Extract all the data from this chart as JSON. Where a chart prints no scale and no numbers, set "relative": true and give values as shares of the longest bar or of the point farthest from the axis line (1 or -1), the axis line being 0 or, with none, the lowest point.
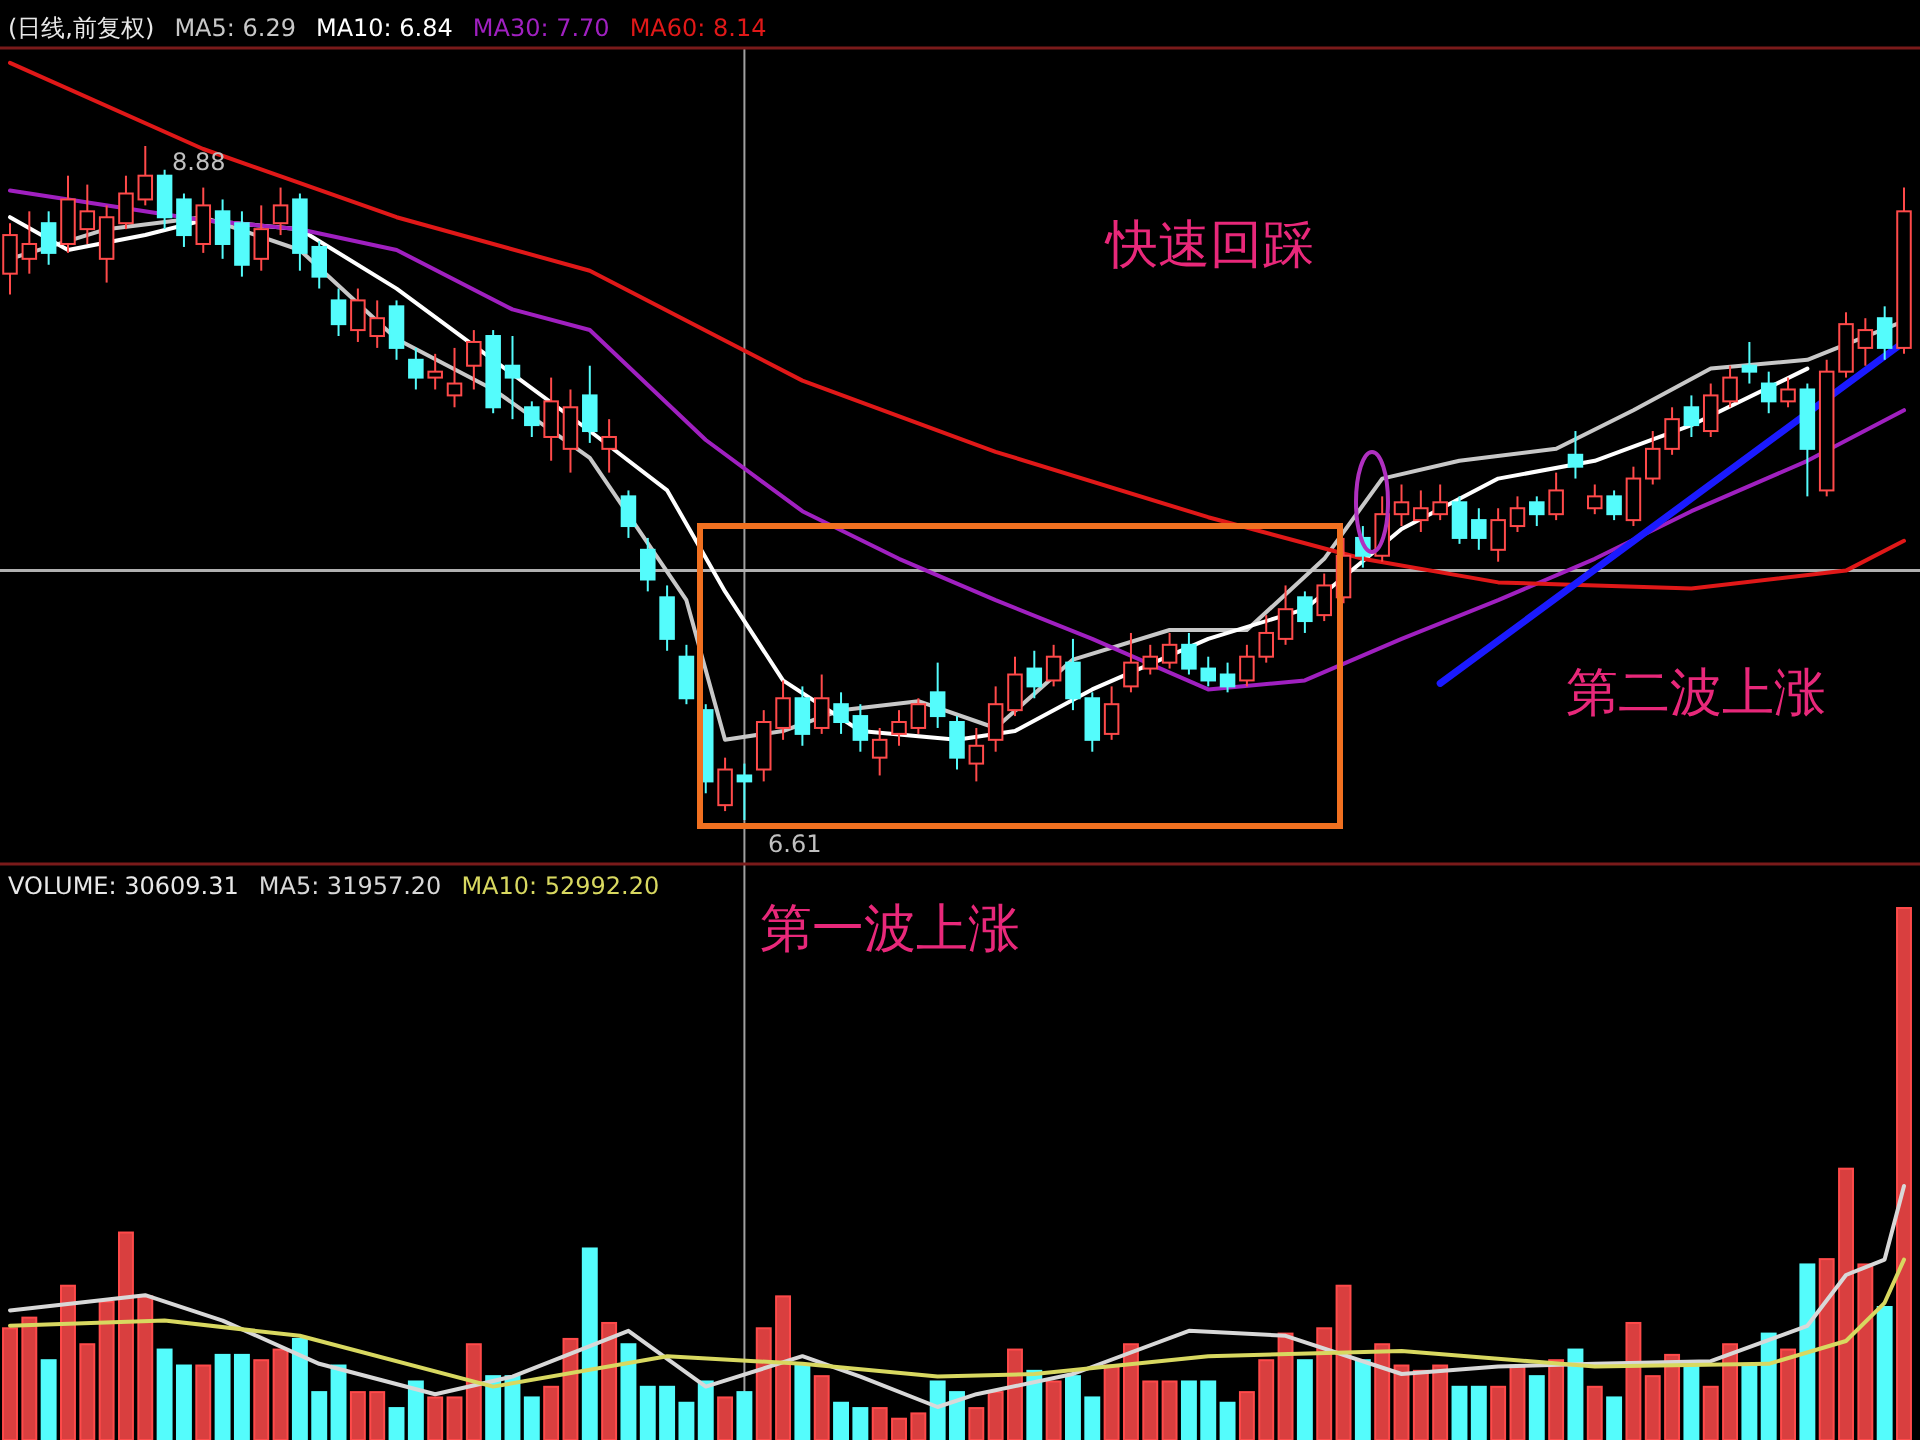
{
  "chart_data": [
    {
      "type": "candlestick",
      "title": "(日线,前复权)",
      "legend": "top left",
      "categories": [
        null,
        null,
        null,
        null,
        null,
        null,
        null,
        null,
        null,
        null,
        null,
        null,
        null,
        null,
        null,
        null,
        null,
        null,
        null,
        null,
        null,
        null,
        null,
        null,
        null,
        null,
        null,
        null,
        null,
        null,
        null,
        null,
        null,
        null,
        null,
        null,
        null,
        null,
        null,
        null,
        null,
        null,
        null,
        null,
        null,
        null,
        null,
        null,
        null,
        null,
        null,
        null,
        null,
        null,
        null,
        null,
        null,
        null,
        null,
        null,
        null,
        null,
        null,
        null,
        null,
        null,
        null,
        null,
        null,
        null,
        null,
        null,
        null,
        null,
        null,
        null,
        null,
        null,
        null,
        null,
        null,
        null,
        null,
        null,
        null,
        null,
        null,
        null,
        null,
        null,
        null,
        null,
        null,
        null,
        null,
        null,
        null,
        null,
        null
      ],
      "ohlc": [
        [
          8.45,
          8.62,
          8.38,
          8.58
        ],
        [
          8.5,
          8.66,
          8.45,
          8.55
        ],
        [
          8.62,
          8.66,
          8.48,
          8.52
        ],
        [
          8.55,
          8.78,
          8.52,
          8.7
        ],
        [
          8.6,
          8.75,
          8.55,
          8.66
        ],
        [
          8.5,
          8.68,
          8.42,
          8.64
        ],
        [
          8.62,
          8.78,
          8.6,
          8.72
        ],
        [
          8.7,
          8.88,
          8.68,
          8.78
        ],
        [
          8.78,
          8.8,
          8.6,
          8.64
        ],
        [
          8.7,
          8.72,
          8.54,
          8.58
        ],
        [
          8.55,
          8.74,
          8.52,
          8.68
        ],
        [
          8.66,
          8.7,
          8.5,
          8.55
        ],
        [
          8.62,
          8.66,
          8.44,
          8.48
        ],
        [
          8.5,
          8.68,
          8.46,
          8.6
        ],
        [
          8.62,
          8.74,
          8.58,
          8.68
        ],
        [
          8.7,
          8.72,
          8.46,
          8.52
        ],
        [
          8.54,
          8.56,
          8.4,
          8.44
        ],
        [
          8.36,
          8.4,
          8.24,
          8.28
        ],
        [
          8.26,
          8.4,
          8.22,
          8.36
        ],
        [
          8.24,
          8.36,
          8.2,
          8.3
        ],
        [
          8.34,
          8.36,
          8.16,
          8.2
        ],
        [
          8.16,
          8.2,
          8.06,
          8.1
        ],
        [
          8.1,
          8.18,
          8.06,
          8.12
        ],
        [
          8.04,
          8.2,
          8.0,
          8.08
        ],
        [
          8.14,
          8.26,
          8.06,
          8.22
        ],
        [
          8.24,
          8.26,
          7.98,
          8.0
        ],
        [
          8.14,
          8.24,
          7.96,
          8.1
        ],
        [
          8.0,
          8.02,
          7.9,
          7.94
        ],
        [
          7.9,
          8.1,
          7.82,
          8.02
        ],
        [
          7.86,
          8.06,
          7.78,
          8.0
        ],
        [
          8.04,
          8.14,
          7.88,
          7.92
        ],
        [
          7.86,
          7.96,
          7.78,
          7.9
        ],
        [
          7.7,
          7.72,
          7.56,
          7.6
        ],
        [
          7.52,
          7.56,
          7.38,
          7.42
        ],
        [
          7.36,
          7.4,
          7.18,
          7.22
        ],
        [
          7.16,
          7.2,
          7.0,
          7.02
        ],
        [
          6.98,
          7.0,
          6.7,
          6.74
        ],
        [
          6.66,
          6.82,
          6.64,
          6.78
        ],
        [
          6.76,
          6.8,
          6.61,
          6.74
        ],
        [
          6.78,
          6.98,
          6.74,
          6.94
        ],
        [
          6.92,
          7.08,
          6.88,
          7.02
        ],
        [
          7.02,
          7.06,
          6.86,
          6.9
        ],
        [
          6.92,
          7.1,
          6.9,
          7.02
        ],
        [
          7.0,
          7.04,
          6.9,
          6.94
        ],
        [
          6.96,
          7.0,
          6.84,
          6.88
        ],
        [
          6.82,
          6.92,
          6.76,
          6.88
        ],
        [
          6.9,
          6.98,
          6.86,
          6.94
        ],
        [
          6.92,
          7.02,
          6.9,
          7.0
        ],
        [
          7.04,
          7.14,
          6.92,
          6.96
        ],
        [
          6.94,
          6.96,
          6.78,
          6.82
        ],
        [
          6.8,
          6.92,
          6.74,
          6.86
        ],
        [
          6.88,
          7.06,
          6.84,
          7.0
        ],
        [
          6.98,
          7.16,
          6.96,
          7.1
        ],
        [
          7.12,
          7.18,
          7.02,
          7.06
        ],
        [
          7.08,
          7.2,
          7.06,
          7.16
        ],
        [
          7.14,
          7.22,
          6.98,
          7.02
        ],
        [
          7.02,
          7.04,
          6.84,
          6.88
        ],
        [
          6.9,
          7.06,
          6.88,
          7.0
        ],
        [
          7.06,
          7.24,
          7.04,
          7.14
        ],
        [
          7.12,
          7.2,
          7.1,
          7.16
        ],
        [
          7.14,
          7.24,
          7.12,
          7.2
        ],
        [
          7.2,
          7.24,
          7.1,
          7.12
        ],
        [
          7.12,
          7.16,
          7.06,
          7.08
        ],
        [
          7.1,
          7.14,
          7.04,
          7.06
        ],
        [
          7.08,
          7.2,
          7.06,
          7.16
        ],
        [
          7.16,
          7.3,
          7.14,
          7.24
        ],
        [
          7.22,
          7.4,
          7.2,
          7.32
        ],
        [
          7.36,
          7.38,
          7.24,
          7.28
        ],
        [
          7.3,
          7.44,
          7.28,
          7.4
        ],
        [
          7.36,
          7.56,
          7.34,
          7.5
        ],
        [
          7.56,
          7.6,
          7.46,
          7.5
        ],
        [
          7.5,
          7.7,
          7.48,
          7.64
        ],
        [
          7.64,
          7.74,
          7.6,
          7.68
        ],
        [
          7.62,
          7.72,
          7.58,
          7.66
        ],
        [
          7.64,
          7.74,
          7.62,
          7.68
        ],
        [
          7.68,
          7.7,
          7.54,
          7.56
        ],
        [
          7.62,
          7.66,
          7.52,
          7.56
        ],
        [
          7.52,
          7.66,
          7.48,
          7.62
        ],
        [
          7.6,
          7.7,
          7.58,
          7.66
        ],
        [
          7.68,
          7.7,
          7.6,
          7.64
        ],
        [
          7.64,
          7.78,
          7.62,
          7.72
        ],
        [
          7.84,
          7.92,
          7.76,
          7.8
        ],
        [
          7.66,
          7.74,
          7.64,
          7.7
        ],
        [
          7.7,
          7.72,
          7.62,
          7.64
        ],
        [
          7.62,
          7.8,
          7.6,
          7.76
        ],
        [
          7.76,
          7.92,
          7.74,
          7.86
        ],
        [
          7.86,
          8.0,
          7.84,
          7.96
        ],
        [
          8.0,
          8.04,
          7.9,
          7.94
        ],
        [
          7.92,
          8.08,
          7.9,
          8.04
        ],
        [
          8.02,
          8.14,
          8.0,
          8.1
        ],
        [
          8.14,
          8.22,
          8.08,
          8.12
        ],
        [
          8.08,
          8.12,
          7.98,
          8.02
        ],
        [
          8.02,
          8.1,
          8.0,
          8.06
        ],
        [
          8.06,
          8.08,
          7.7,
          7.86
        ],
        [
          7.72,
          8.16,
          7.7,
          8.12
        ],
        [
          8.12,
          8.32,
          8.1,
          8.28
        ],
        [
          8.2,
          8.3,
          8.14,
          8.26
        ],
        [
          8.3,
          8.34,
          8.16,
          8.2
        ],
        [
          8.2,
          8.74,
          8.18,
          8.66
        ]
      ],
      "colors": [
        "#ff4a4a",
        "#ff4a4a",
        "#54fcfc",
        "#ff4a4a",
        "#ff4a4a",
        "#ff4a4a",
        "#ff4a4a",
        "#ff4a4a",
        "#54fcfc",
        "#54fcfc",
        "#ff4a4a",
        "#54fcfc",
        "#54fcfc",
        "#ff4a4a",
        "#ff4a4a",
        "#54fcfc",
        "#54fcfc",
        "#54fcfc",
        "#ff4a4a",
        "#ff4a4a",
        "#54fcfc",
        "#54fcfc",
        "#ff4a4a",
        "#ff4a4a",
        "#ff4a4a",
        "#54fcfc",
        "#54fcfc",
        "#54fcfc",
        "#ff4a4a",
        "#ff4a4a",
        "#54fcfc",
        "#ff4a4a",
        "#54fcfc",
        "#54fcfc",
        "#54fcfc",
        "#54fcfc",
        "#54fcfc",
        "#ff4a4a",
        "#54fcfc",
        "#ff4a4a",
        "#ff4a4a",
        "#54fcfc",
        "#ff4a4a",
        "#54fcfc",
        "#54fcfc",
        "#ff4a4a",
        "#ff4a4a",
        "#ff4a4a",
        "#54fcfc",
        "#54fcfc",
        "#ff4a4a",
        "#ff4a4a",
        "#ff4a4a",
        "#54fcfc",
        "#ff4a4a",
        "#54fcfc",
        "#54fcfc",
        "#ff4a4a",
        "#ff4a4a",
        "#ff4a4a",
        "#ff4a4a",
        "#54fcfc",
        "#54fcfc",
        "#54fcfc",
        "#ff4a4a",
        "#ff4a4a",
        "#ff4a4a",
        "#54fcfc",
        "#ff4a4a",
        "#ff4a4a",
        "#54fcfc",
        "#ff4a4a",
        "#ff4a4a",
        "#ff4a4a",
        "#ff4a4a",
        "#54fcfc",
        "#54fcfc",
        "#ff4a4a",
        "#ff4a4a",
        "#54fcfc",
        "#ff4a4a",
        "#54fcfc",
        "#ff4a4a",
        "#54fcfc",
        "#ff4a4a",
        "#ff4a4a",
        "#ff4a4a",
        "#54fcfc",
        "#ff4a4a",
        "#ff4a4a",
        "#54fcfc",
        "#54fcfc",
        "#ff4a4a",
        "#54fcfc",
        "#ff4a4a",
        "#ff4a4a",
        "#ff4a4a",
        "#54fcfc",
        "#ff4a4a"
      ],
      "series": [
        {
          "type": "line",
          "name": "MA5: 6.29",
          "color": "#c8c8c8",
          "values": [
            8.5,
            null,
            null,
            null,
            null,
            8.6,
            null,
            null,
            null,
            null,
            8.64,
            null,
            null,
            null,
            null,
            8.53,
            null,
            null,
            null,
            null,
            8.23,
            null,
            null,
            null,
            null,
            8.06,
            null,
            null,
            null,
            null,
            7.83,
            null,
            null,
            null,
            null,
            7.35,
            null,
            6.88,
            null,
            null,
            6.91,
            null,
            null,
            6.98,
            null,
            null,
            null,
            7.01,
            null,
            null,
            null,
            6.92,
            null,
            null,
            null,
            7.15,
            null,
            null,
            null,
            null,
            7.25,
            null,
            null,
            null,
            7.25,
            null,
            null,
            null,
            7.49,
            null,
            null,
            7.76,
            null,
            null,
            null,
            7.82,
            null,
            null,
            null,
            null,
            7.86,
            null,
            null,
            null,
            7.99,
            null,
            null,
            null,
            8.13,
            null,
            null,
            null,
            null,
            8.16,
            null,
            null,
            null,
            null,
            8.29
          ]
        },
        {
          "type": "line",
          "name": "MA10: 6.84",
          "color": "#ffffff",
          "values": [
            8.64,
            null,
            null,
            8.53,
            null,
            null,
            null,
            8.58,
            null,
            null,
            8.63,
            null,
            null,
            null,
            null,
            8.6,
            null,
            null,
            null,
            null,
            8.4,
            null,
            null,
            null,
            null,
            8.16,
            null,
            null,
            null,
            null,
            7.92,
            null,
            null,
            null,
            7.72,
            null,
            null,
            7.38,
            null,
            null,
            7.08,
            null,
            null,
            null,
            6.91,
            null,
            null,
            null,
            null,
            6.88,
            null,
            null,
            6.91,
            null,
            null,
            null,
            7.05,
            null,
            null,
            null,
            null,
            null,
            7.22,
            null,
            null,
            null,
            null,
            7.32,
            null,
            null,
            null,
            null,
            7.59,
            null,
            null,
            null,
            null,
            7.76,
            null,
            null,
            null,
            null,
            7.82,
            null,
            null,
            null,
            null,
            7.94,
            null,
            null,
            null,
            null,
            null,
            8.13,
            null,
            null,
            null,
            null,
            null
          ]
        },
        {
          "type": "line",
          "name": "MA30: 7.70",
          "color": "#a020c0",
          "values": [
            8.73,
            null,
            null,
            null,
            null,
            null,
            null,
            null,
            null,
            null,
            8.63,
            null,
            null,
            null,
            null,
            8.6,
            null,
            null,
            null,
            null,
            8.53,
            null,
            null,
            null,
            null,
            null,
            8.33,
            null,
            null,
            null,
            8.26,
            null,
            null,
            null,
            null,
            null,
            7.89,
            null,
            null,
            null,
            null,
            7.65,
            null,
            null,
            null,
            null,
            7.49,
            null,
            null,
            null,
            null,
            7.35,
            null,
            null,
            null,
            null,
            7.22,
            null,
            null,
            null,
            null,
            null,
            7.05,
            null,
            null,
            null,
            null,
            7.08,
            null,
            null,
            null,
            null,
            7.22,
            null,
            null,
            null,
            null,
            7.35,
            null,
            null,
            null,
            null,
            7.49,
            null,
            null,
            null,
            null,
            7.65,
            null,
            null,
            null,
            null,
            null,
            7.82,
            null,
            null,
            null,
            null,
            7.99
          ]
        },
        {
          "type": "line",
          "name": "MA60: 8.14",
          "color": "#e01818",
          "values": [
            9.16,
            null,
            null,
            null,
            null,
            null,
            null,
            null,
            null,
            null,
            8.87,
            null,
            null,
            null,
            null,
            null,
            null,
            null,
            null,
            null,
            8.64,
            null,
            null,
            null,
            null,
            null,
            null,
            null,
            null,
            null,
            8.46,
            null,
            null,
            null,
            null,
            null,
            null,
            null,
            null,
            null,
            null,
            8.09,
            null,
            null,
            null,
            null,
            null,
            null,
            null,
            null,
            null,
            7.85,
            null,
            null,
            null,
            null,
            null,
            null,
            null,
            null,
            null,
            null,
            7.63,
            null,
            null,
            null,
            null,
            null,
            null,
            null,
            7.49,
            null,
            null,
            null,
            null,
            null,
            null,
            7.41,
            null,
            null,
            null,
            null,
            null,
            null,
            null,
            null,
            null,
            7.39,
            null,
            null,
            null,
            null,
            null,
            null,
            null,
            7.45,
            null,
            null,
            7.55
          ]
        },
        {
          "type": "line",
          "color": "#1a1aff",
          "values": [
            null,
            null,
            null,
            null,
            null,
            null,
            null,
            null,
            null,
            null,
            null,
            null,
            null,
            null,
            null,
            null,
            null,
            null,
            null,
            null,
            null,
            null,
            null,
            null,
            null,
            null,
            null,
            null,
            null,
            null,
            null,
            null,
            null,
            null,
            null,
            null,
            null,
            null,
            null,
            null,
            null,
            null,
            null,
            null,
            null,
            null,
            null,
            null,
            null,
            null,
            null,
            null,
            null,
            null,
            null,
            null,
            null,
            null,
            null,
            null,
            null,
            null,
            null,
            null,
            null,
            null,
            null,
            null,
            null,
            null,
            null,
            null,
            null,
            null,
            7.07,
            null,
            null,
            null,
            null,
            null,
            null,
            null,
            null,
            null,
            null,
            null,
            null,
            null,
            null,
            null,
            null,
            null,
            null,
            null,
            null,
            null,
            null,
            null,
            8.22
          ]
        }
      ],
      "ref_lines": [
        {
          "axis": "y",
          "value": 7.45,
          "color": "#b0b0b0"
        }
      ],
      "annotations": [
        "快速回踩",
        "第二波上涨",
        "8.88",
        "6.61"
      ]
    },
    {
      "type": "bar",
      "relative": true,
      "title": "VOLUME: 30609.31",
      "categories": [
        null,
        null,
        null,
        null,
        null,
        null,
        null,
        null,
        null,
        null,
        null,
        null,
        null,
        null,
        null,
        null,
        null,
        null,
        null,
        null,
        null,
        null,
        null,
        null,
        null,
        null,
        null,
        null,
        null,
        null,
        null,
        null,
        null,
        null,
        null,
        null,
        null,
        null,
        null,
        null,
        null,
        null,
        null,
        null,
        null,
        null,
        null,
        null,
        null,
        null,
        null,
        null,
        null,
        null,
        null,
        null,
        null,
        null,
        null,
        null,
        null,
        null,
        null,
        null,
        null,
        null,
        null,
        null,
        null,
        null,
        null,
        null,
        null,
        null,
        null,
        null,
        null,
        null,
        null,
        null,
        null,
        null,
        null,
        null,
        null,
        null,
        null,
        null,
        null,
        null,
        null,
        null,
        null,
        null,
        null,
        null,
        null,
        null,
        null
      ],
      "series": [
        {
          "values": [
            0.21,
            0.23,
            0.15,
            0.29,
            0.18,
            0.26,
            0.39,
            0.27,
            0.17,
            0.14,
            0.14,
            0.16,
            0.16,
            0.15,
            0.17,
            0.19,
            0.09,
            0.14,
            0.09,
            0.09,
            0.06,
            0.11,
            0.08,
            0.08,
            0.18,
            0.12,
            0.12,
            0.08,
            0.1,
            0.19,
            0.36,
            0.22,
            0.18,
            0.1,
            0.1,
            0.07,
            0.11,
            0.08,
            0.09,
            0.21,
            0.27,
            0.14,
            0.12,
            0.07,
            0.06,
            0.06,
            0.04,
            0.05,
            0.11,
            0.09,
            0.06,
            0.09,
            0.17,
            0.13,
            0.11,
            0.12,
            0.08,
            0.14,
            0.18,
            0.11,
            0.11,
            0.11,
            0.11,
            0.07,
            0.09,
            0.15,
            0.2,
            0.15,
            0.21,
            0.29,
            0.15,
            0.18,
            0.14,
            0.13,
            0.14,
            0.1,
            0.1,
            0.1,
            0.14,
            0.12,
            0.15,
            0.17,
            0.1,
            0.08,
            0.22,
            0.12,
            0.16,
            0.14,
            0.1,
            0.18,
            0.14,
            0.2,
            0.17,
            0.33,
            0.34,
            0.51,
            0.33,
            0.25,
            1
          ],
          "colors": [
            "#ff4a4a",
            "#ff4a4a",
            "#54fcfc",
            "#ff4a4a",
            "#ff4a4a",
            "#ff4a4a",
            "#ff4a4a",
            "#ff4a4a",
            "#54fcfc",
            "#54fcfc",
            "#ff4a4a",
            "#54fcfc",
            "#54fcfc",
            "#ff4a4a",
            "#ff4a4a",
            "#54fcfc",
            "#54fcfc",
            "#54fcfc",
            "#ff4a4a",
            "#ff4a4a",
            "#54fcfc",
            "#54fcfc",
            "#ff4a4a",
            "#ff4a4a",
            "#ff4a4a",
            "#54fcfc",
            "#54fcfc",
            "#54fcfc",
            "#ff4a4a",
            "#ff4a4a",
            "#54fcfc",
            "#ff4a4a",
            "#54fcfc",
            "#54fcfc",
            "#54fcfc",
            "#54fcfc",
            "#54fcfc",
            "#ff4a4a",
            "#54fcfc",
            "#ff4a4a",
            "#ff4a4a",
            "#54fcfc",
            "#ff4a4a",
            "#54fcfc",
            "#54fcfc",
            "#ff4a4a",
            "#ff4a4a",
            "#ff4a4a",
            "#54fcfc",
            "#54fcfc",
            "#ff4a4a",
            "#ff4a4a",
            "#ff4a4a",
            "#54fcfc",
            "#ff4a4a",
            "#54fcfc",
            "#54fcfc",
            "#ff4a4a",
            "#ff4a4a",
            "#ff4a4a",
            "#ff4a4a",
            "#54fcfc",
            "#54fcfc",
            "#54fcfc",
            "#ff4a4a",
            "#ff4a4a",
            "#ff4a4a",
            "#54fcfc",
            "#ff4a4a",
            "#ff4a4a",
            "#54fcfc",
            "#ff4a4a",
            "#ff4a4a",
            "#ff4a4a",
            "#ff4a4a",
            "#54fcfc",
            "#54fcfc",
            "#ff4a4a",
            "#ff4a4a",
            "#54fcfc",
            "#ff4a4a",
            "#54fcfc",
            "#ff4a4a",
            "#54fcfc",
            "#ff4a4a",
            "#ff4a4a",
            "#ff4a4a",
            "#54fcfc",
            "#ff4a4a",
            "#ff4a4a",
            "#54fcfc",
            "#54fcfc",
            "#ff4a4a",
            "#54fcfc",
            "#ff4a4a",
            "#ff4a4a",
            "#ff4a4a",
            "#54fcfc",
            "#ff4a4a"
          ]
        }
      ],
      "annotations": [
        "第一波上涨"
      ]
    },
    {
      "type": "line",
      "relative": true,
      "legend": "top left",
      "categories": [
        null,
        null,
        null,
        null,
        null,
        null,
        null,
        null,
        null,
        null,
        null,
        null,
        null,
        null,
        null,
        null,
        null,
        null,
        null,
        null,
        null,
        null,
        null,
        null,
        null,
        null,
        null,
        null,
        null,
        null,
        null,
        null,
        null,
        null,
        null,
        null,
        null,
        null,
        null,
        null,
        null,
        null,
        null,
        null,
        null,
        null,
        null,
        null,
        null,
        null,
        null,
        null,
        null,
        null,
        null,
        null,
        null,
        null,
        null,
        null,
        null,
        null,
        null,
        null,
        null,
        null,
        null,
        null,
        null,
        null,
        null,
        null,
        null,
        null,
        null,
        null,
        null,
        null,
        null,
        null,
        null,
        null,
        null,
        null,
        null,
        null,
        null,
        null,
        null,
        null,
        null,
        null,
        null,
        null,
        null,
        null,
        null,
        null,
        null
      ],
      "series": [
        {
          "name": "MA5: 31957.20",
          "color": "#d8d8d8",
          "values": [
            0.51,
            null,
            null,
            null,
            null,
            null,
            null,
            0.57,
            null,
            null,
            null,
            0.47,
            null,
            null,
            null,
            null,
            0.3,
            null,
            null,
            null,
            null,
            null,
            0.18,
            null,
            null,
            null,
            0.25,
            null,
            null,
            null,
            null,
            null,
            0.43,
            null,
            null,
            null,
            0.21,
            null,
            null,
            null,
            null,
            0.33,
            null,
            null,
            0.25,
            null,
            null,
            null,
            0.13,
            null,
            0.18,
            null,
            null,
            null,
            null,
            0.26,
            null,
            null,
            null,
            null,
            null,
            0.43,
            null,
            null,
            null,
            null,
            0.41,
            null,
            null,
            null,
            null,
            null,
            0.26,
            null,
            null,
            null,
            null,
            0.29,
            null,
            null,
            null,
            null,
            0.3,
            null,
            null,
            null,
            null,
            null,
            0.31,
            null,
            null,
            null,
            null,
            0.45,
            null,
            0.65,
            null,
            0.71,
            1
          ]
        },
        {
          "name": "MA10: 52992.20",
          "color": "#d8d860",
          "values": [
            0.45,
            null,
            null,
            null,
            null,
            null,
            null,
            null,
            0.47,
            null,
            null,
            null,
            null,
            null,
            null,
            0.41,
            null,
            null,
            null,
            null,
            null,
            null,
            null,
            null,
            null,
            0.21,
            null,
            null,
            null,
            null,
            null,
            null,
            null,
            null,
            0.33,
            null,
            null,
            null,
            null,
            null,
            null,
            0.3,
            null,
            null,
            null,
            null,
            null,
            null,
            0.25,
            null,
            null,
            null,
            null,
            0.26,
            null,
            null,
            null,
            null,
            null,
            null,
            null,
            null,
            0.33,
            null,
            null,
            null,
            null,
            null,
            null,
            null,
            null,
            null,
            0.35,
            null,
            null,
            null,
            null,
            null,
            null,
            null,
            null,
            null,
            0.29,
            null,
            null,
            null,
            null,
            null,
            null,
            null,
            null,
            0.3,
            null,
            null,
            null,
            0.39,
            null,
            0.54,
            0.71
          ]
        }
      ]
    }
  ]
}
